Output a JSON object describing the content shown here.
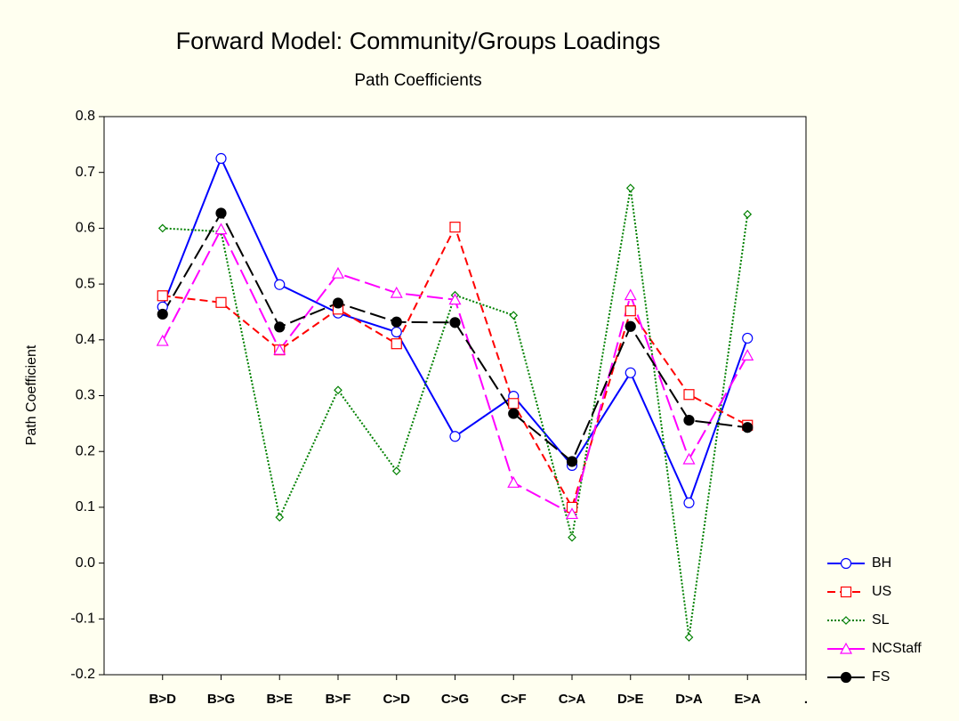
{
  "chart_data": {
    "type": "line",
    "title": "Forward Model: Community/Groups Loadings",
    "subtitle": "Path Coefficients",
    "y_label": "Path Coefficient",
    "categories": [
      "B>D",
      "B>G",
      "B>E",
      "B>F",
      "C>D",
      "C>G",
      "C>F",
      "C>A",
      "D>E",
      "D>A",
      "E>A",
      "."
    ],
    "series": [
      {
        "name": "BH",
        "color": "#0000ff",
        "marker": "circle",
        "dash": "solid",
        "values": [
          0.459,
          0.725,
          0.499,
          0.448,
          0.414,
          0.227,
          0.299,
          0.175,
          0.341,
          0.108,
          0.403,
          null
        ]
      },
      {
        "name": "US",
        "color": "#ff0000",
        "marker": "square",
        "dash": "dashed",
        "values": [
          0.479,
          0.467,
          0.382,
          0.455,
          0.393,
          0.602,
          0.286,
          0.1,
          0.452,
          0.302,
          0.247,
          null
        ]
      },
      {
        "name": "SL",
        "color": "#008000",
        "marker": "diamond",
        "dash": "dotted",
        "values": [
          0.6,
          0.594,
          0.082,
          0.31,
          0.165,
          0.48,
          0.444,
          0.046,
          0.672,
          -0.133,
          0.625,
          null
        ]
      },
      {
        "name": "NCStaff",
        "color": "#ff00ff",
        "marker": "triangle",
        "dash": "longdash",
        "values": [
          0.398,
          0.598,
          0.382,
          0.519,
          0.484,
          0.472,
          0.144,
          0.088,
          0.48,
          0.186,
          0.372,
          null
        ]
      },
      {
        "name": "FS",
        "color": "#000000",
        "marker": "dot",
        "dash": "longdash",
        "values": [
          0.446,
          0.627,
          0.423,
          0.466,
          0.432,
          0.431,
          0.268,
          0.182,
          0.424,
          0.256,
          0.243,
          null
        ]
      }
    ],
    "ylim": [
      -0.2,
      0.8
    ],
    "yticks": [
      -0.2,
      -0.1,
      {
        "value": 0,
        "label": "0.0"
      },
      0.1,
      0.2,
      0.3,
      0.4,
      0.5,
      0.6,
      0.7,
      0.8
    ],
    "legend": "right-bottom"
  }
}
